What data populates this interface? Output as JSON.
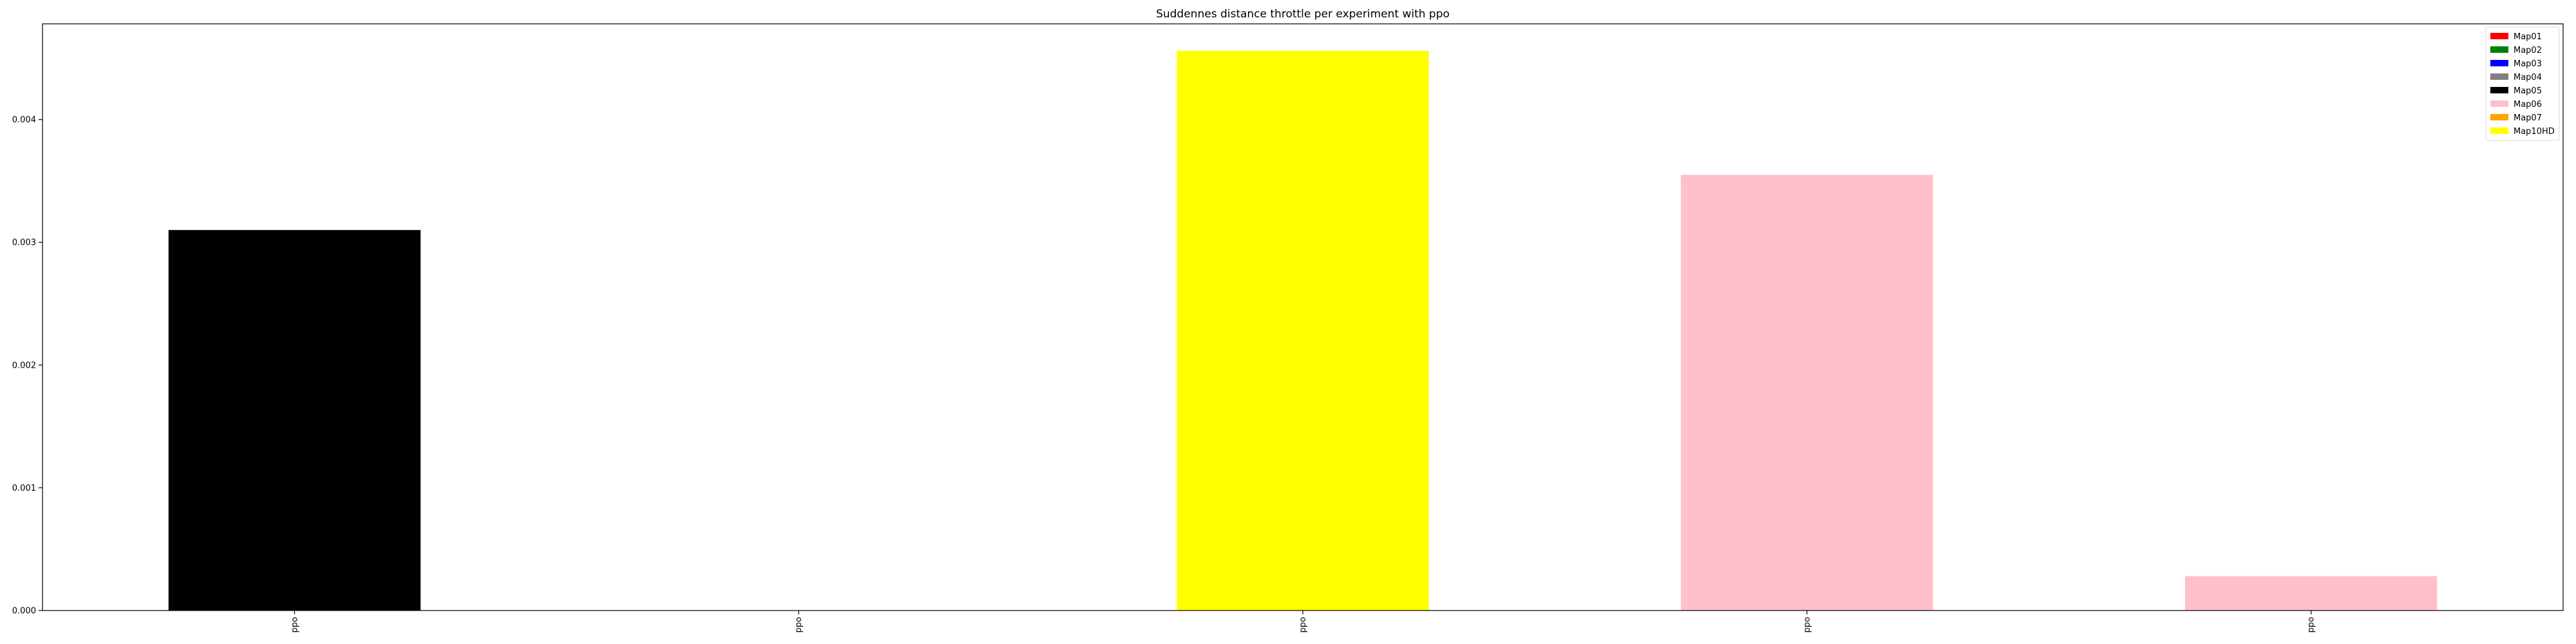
{
  "chart_data": {
    "type": "bar",
    "title": "Suddennes distance throttle per experiment with ppo",
    "xlabel": "",
    "ylabel": "",
    "categories": [
      "ppo",
      "ppo",
      "ppo",
      "ppo",
      "ppo"
    ],
    "bars": [
      {
        "category": "ppo",
        "value": 0.0031,
        "color": "#000000"
      },
      {
        "category": "ppo",
        "value": 0.0,
        "color": "#ffffff"
      },
      {
        "category": "ppo",
        "value": 0.00456,
        "color": "#ffff00"
      },
      {
        "category": "ppo",
        "value": 0.00355,
        "color": "#ffc0cb"
      },
      {
        "category": "ppo",
        "value": 0.00028,
        "color": "#ffc0cb"
      }
    ],
    "ylim": [
      0,
      0.00478
    ],
    "yticks": [
      "0.000",
      "0.001",
      "0.002",
      "0.003",
      "0.004"
    ],
    "ytick_values": [
      0,
      0.001,
      0.002,
      0.003,
      0.004
    ],
    "grid": false,
    "legend_position": "top-right",
    "legend": [
      {
        "label": "Map01",
        "color": "#ff0000"
      },
      {
        "label": "Map02",
        "color": "#008000"
      },
      {
        "label": "Map03",
        "color": "#0000ff"
      },
      {
        "label": "Map04",
        "color": "#808080"
      },
      {
        "label": "Map05",
        "color": "#000000"
      },
      {
        "label": "Map06",
        "color": "#ffc0cb"
      },
      {
        "label": "Map07",
        "color": "#ffa500"
      },
      {
        "label": "Map10HD",
        "color": "#ffff00"
      }
    ]
  }
}
